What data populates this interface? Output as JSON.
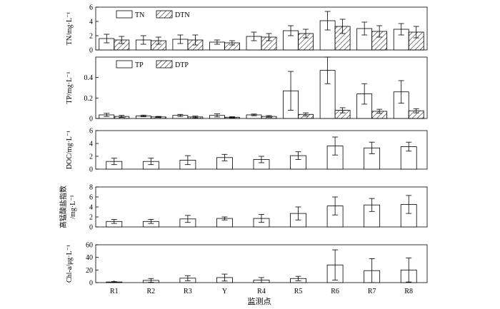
{
  "figure": {
    "xlabel": "监测点",
    "colors": {
      "axis": "#000000",
      "bar_fill": "#ffffff",
      "hatch": "#000000",
      "background": "#ffffff"
    }
  },
  "chart_data": [
    {
      "type": "bar",
      "id": "tn",
      "ylabel": "TN/mg·L⁻¹",
      "ylim": [
        0,
        6
      ],
      "yticks": [
        0,
        2,
        4,
        6
      ],
      "categories": [
        "R1",
        "R2",
        "R3",
        "Y",
        "R4",
        "R5",
        "R6",
        "R7",
        "R8"
      ],
      "legend": {
        "position": "top-left",
        "entries": [
          "TN",
          "DTN"
        ]
      },
      "series": [
        {
          "name": "TN",
          "pattern": "open",
          "values": [
            1.6,
            1.4,
            1.5,
            1.1,
            1.9,
            2.7,
            4.1,
            3.0,
            2.9
          ],
          "errors": [
            0.6,
            0.6,
            0.6,
            0.3,
            0.6,
            0.7,
            1.3,
            0.9,
            0.8
          ]
        },
        {
          "name": "DTN",
          "pattern": "hatched",
          "values": [
            1.4,
            1.3,
            1.4,
            1.0,
            1.8,
            2.3,
            3.3,
            2.6,
            2.5
          ],
          "errors": [
            0.5,
            0.5,
            0.7,
            0.3,
            0.5,
            0.6,
            1.0,
            0.8,
            0.8
          ]
        }
      ]
    },
    {
      "type": "bar",
      "id": "tp",
      "ylabel": "TP/mg·L⁻¹",
      "ylim": [
        0,
        0.6
      ],
      "yticks": [
        0,
        0.2,
        0.4
      ],
      "categories": [
        "R1",
        "R2",
        "R3",
        "Y",
        "R4",
        "R5",
        "R6",
        "R7",
        "R8"
      ],
      "legend": {
        "position": "top-left",
        "entries": [
          "TP",
          "DTP"
        ]
      },
      "series": [
        {
          "name": "TP",
          "pattern": "open",
          "values": [
            0.035,
            0.025,
            0.03,
            0.03,
            0.035,
            0.27,
            0.47,
            0.24,
            0.26
          ],
          "errors": [
            0.015,
            0.008,
            0.01,
            0.015,
            0.008,
            0.19,
            0.13,
            0.1,
            0.11
          ]
        },
        {
          "name": "DTP",
          "pattern": "hatched",
          "values": [
            0.02,
            0.015,
            0.015,
            0.012,
            0.02,
            0.04,
            0.08,
            0.07,
            0.075
          ],
          "errors": [
            0.01,
            0.005,
            0.008,
            0.005,
            0.008,
            0.015,
            0.025,
            0.02,
            0.02
          ]
        }
      ]
    },
    {
      "type": "bar",
      "id": "doc",
      "ylabel": "DOC/mg·L⁻¹",
      "ylim": [
        0,
        6
      ],
      "yticks": [
        0,
        2,
        4,
        6
      ],
      "categories": [
        "R1",
        "R2",
        "R3",
        "Y",
        "R4",
        "R5",
        "R6",
        "R7",
        "R8"
      ],
      "series": [
        {
          "pattern": "open",
          "values": [
            1.2,
            1.2,
            1.4,
            1.8,
            1.5,
            2.1,
            3.6,
            3.3,
            3.5
          ],
          "errors": [
            0.5,
            0.5,
            0.7,
            0.5,
            0.5,
            0.6,
            1.4,
            0.9,
            0.7
          ]
        }
      ]
    },
    {
      "type": "bar",
      "id": "codmn",
      "ylabel_lines": [
        "高锰酸盐指数",
        "/mg·L⁻¹"
      ],
      "ylim": [
        0,
        8
      ],
      "yticks": [
        0,
        2,
        4,
        6,
        8
      ],
      "categories": [
        "R1",
        "R2",
        "R3",
        "Y",
        "R4",
        "R5",
        "R6",
        "R7",
        "R8"
      ],
      "series": [
        {
          "pattern": "open",
          "values": [
            1.1,
            1.1,
            1.6,
            1.7,
            1.7,
            2.7,
            4.2,
            4.4,
            4.5
          ],
          "errors": [
            0.4,
            0.4,
            0.7,
            0.3,
            0.8,
            1.3,
            1.8,
            1.3,
            1.8
          ]
        }
      ]
    },
    {
      "type": "bar",
      "id": "chla",
      "ylabel": "Chl-a/μg·L⁻¹",
      "ylim": [
        0,
        60
      ],
      "yticks": [
        0,
        20,
        40,
        60
      ],
      "categories": [
        "R1",
        "R2",
        "R3",
        "Y",
        "R4",
        "R5",
        "R6",
        "R7",
        "R8"
      ],
      "series": [
        {
          "pattern": "open",
          "values": [
            1,
            3.5,
            7,
            8,
            4,
            6.5,
            28,
            19,
            20
          ],
          "errors": [
            0.5,
            3,
            4,
            5.5,
            4,
            3.5,
            24,
            19,
            19
          ]
        }
      ]
    }
  ]
}
